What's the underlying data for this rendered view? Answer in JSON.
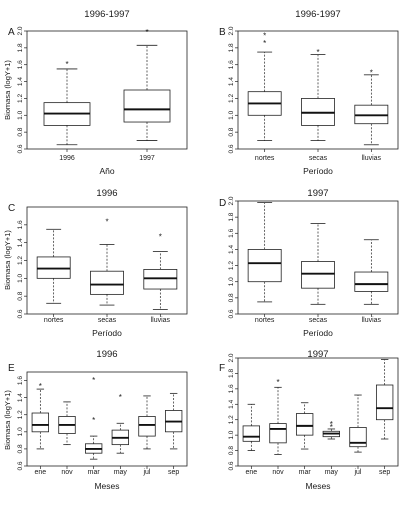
{
  "chart_data": [
    {
      "type": "box",
      "panel_label": "A",
      "title": "1996-1997",
      "ylabel": "Biomasa (logY+1)",
      "xlabel": "Año",
      "ylim": [
        0.6,
        2.0
      ],
      "yticks": [
        "0.6",
        "0.8",
        "1.0",
        "1.2",
        "1.4",
        "1.6",
        "1.8",
        "2.0"
      ],
      "categories": [
        "1996",
        "1997"
      ],
      "boxes": [
        {
          "label": "1996",
          "whisker_low": 0.65,
          "q1": 0.88,
          "median": 1.02,
          "q3": 1.15,
          "whisker_high": 1.55,
          "outliers": [
            1.62
          ]
        },
        {
          "label": "1997",
          "whisker_low": 0.7,
          "q1": 0.92,
          "median": 1.07,
          "q3": 1.3,
          "whisker_high": 1.83,
          "outliers": [
            2.0
          ]
        }
      ]
    },
    {
      "type": "box",
      "panel_label": "B",
      "title": "1996-1997",
      "ylabel": "",
      "xlabel": "Período",
      "ylim": [
        0.6,
        2.0
      ],
      "yticks": [
        "0.6",
        "0.8",
        "1.0",
        "1.2",
        "1.4",
        "1.6",
        "1.8",
        "2.0"
      ],
      "categories": [
        "nortes",
        "secas",
        "lluvias"
      ],
      "boxes": [
        {
          "label": "nortes",
          "whisker_low": 0.7,
          "q1": 1.0,
          "median": 1.14,
          "q3": 1.28,
          "whisker_high": 1.75,
          "outliers": [
            1.87,
            1.96
          ]
        },
        {
          "label": "secas",
          "whisker_low": 0.7,
          "q1": 0.88,
          "median": 1.03,
          "q3": 1.2,
          "whisker_high": 1.72,
          "outliers": [
            1.76
          ]
        },
        {
          "label": "lluvias",
          "whisker_low": 0.65,
          "q1": 0.9,
          "median": 1.0,
          "q3": 1.12,
          "whisker_high": 1.48,
          "outliers": [
            1.52
          ]
        }
      ]
    },
    {
      "type": "box",
      "panel_label": "C",
      "title": "1996",
      "ylabel": "Biomasa (logY+1)",
      "xlabel": "Período",
      "ylim": [
        0.6,
        1.8
      ],
      "yticks": [
        "0.6",
        "0.8",
        "1.0",
        "1.2",
        "1.4",
        "1.6"
      ],
      "categories": [
        "nortes",
        "secas",
        "lluvias"
      ],
      "boxes": [
        {
          "label": "nortes",
          "whisker_low": 0.72,
          "q1": 1.0,
          "median": 1.11,
          "q3": 1.24,
          "whisker_high": 1.55,
          "outliers": []
        },
        {
          "label": "secas",
          "whisker_low": 0.7,
          "q1": 0.82,
          "median": 0.93,
          "q3": 1.08,
          "whisker_high": 1.38,
          "outliers": [
            1.65
          ]
        },
        {
          "label": "lluvias",
          "whisker_low": 0.65,
          "q1": 0.88,
          "median": 1.0,
          "q3": 1.1,
          "whisker_high": 1.3,
          "outliers": [
            1.48
          ]
        }
      ]
    },
    {
      "type": "box",
      "panel_label": "D",
      "title": "1997",
      "ylabel": "",
      "xlabel": "Período",
      "ylim": [
        0.6,
        2.0
      ],
      "yticks": [
        "0.6",
        "0.8",
        "1.0",
        "1.2",
        "1.4",
        "1.6",
        "1.8",
        "2.0"
      ],
      "categories": [
        "nortes",
        "secas",
        "lluvias"
      ],
      "boxes": [
        {
          "label": "nortes",
          "whisker_low": 0.75,
          "q1": 1.0,
          "median": 1.23,
          "q3": 1.4,
          "whisker_high": 1.98,
          "outliers": []
        },
        {
          "label": "secas",
          "whisker_low": 0.72,
          "q1": 0.92,
          "median": 1.1,
          "q3": 1.25,
          "whisker_high": 1.72,
          "outliers": []
        },
        {
          "label": "lluvias",
          "whisker_low": 0.72,
          "q1": 0.88,
          "median": 0.97,
          "q3": 1.12,
          "whisker_high": 1.52,
          "outliers": []
        }
      ]
    },
    {
      "type": "box",
      "panel_label": "E",
      "title": "1996",
      "ylabel": "Biomasa (logY+1)",
      "xlabel": "Meses",
      "ylim": [
        0.6,
        1.7
      ],
      "yticks": [
        "0.6",
        "0.8",
        "1.0",
        "1.2",
        "1.4",
        "1.6"
      ],
      "categories": [
        "ene",
        "nov",
        "mar",
        "may",
        "jul",
        "sep"
      ],
      "boxes": [
        {
          "label": "ene",
          "whisker_low": 0.8,
          "q1": 1.0,
          "median": 1.08,
          "q3": 1.22,
          "whisker_high": 1.5,
          "outliers": [
            1.55
          ]
        },
        {
          "label": "nov",
          "whisker_low": 0.85,
          "q1": 0.98,
          "median": 1.08,
          "q3": 1.18,
          "whisker_high": 1.35,
          "outliers": []
        },
        {
          "label": "mar",
          "whisker_low": 0.68,
          "q1": 0.75,
          "median": 0.8,
          "q3": 0.86,
          "whisker_high": 0.95,
          "outliers": [
            1.15,
            1.62
          ]
        },
        {
          "label": "may",
          "whisker_low": 0.75,
          "q1": 0.85,
          "median": 0.93,
          "q3": 1.02,
          "whisker_high": 1.1,
          "outliers": [
            1.42
          ]
        },
        {
          "label": "jul",
          "whisker_low": 0.8,
          "q1": 0.95,
          "median": 1.08,
          "q3": 1.18,
          "whisker_high": 1.42,
          "outliers": []
        },
        {
          "label": "sep",
          "whisker_low": 0.8,
          "q1": 1.0,
          "median": 1.12,
          "q3": 1.25,
          "whisker_high": 1.45,
          "outliers": []
        }
      ]
    },
    {
      "type": "box",
      "panel_label": "F",
      "title": "1997",
      "ylabel": "",
      "xlabel": "Meses",
      "ylim": [
        0.6,
        2.0
      ],
      "yticks": [
        "0.6",
        "0.8",
        "1.0",
        "1.2",
        "1.4",
        "1.6",
        "1.8",
        "2.0"
      ],
      "categories": [
        "ene",
        "nov",
        "mar",
        "may",
        "jul",
        "sep"
      ],
      "boxes": [
        {
          "label": "ene",
          "whisker_low": 0.8,
          "q1": 0.92,
          "median": 0.98,
          "q3": 1.12,
          "whisker_high": 1.4,
          "outliers": []
        },
        {
          "label": "nov",
          "whisker_low": 0.75,
          "q1": 0.9,
          "median": 1.08,
          "q3": 1.15,
          "whisker_high": 1.62,
          "outliers": [
            1.7
          ]
        },
        {
          "label": "mar",
          "whisker_low": 0.82,
          "q1": 1.0,
          "median": 1.12,
          "q3": 1.28,
          "whisker_high": 1.42,
          "outliers": []
        },
        {
          "label": "may",
          "whisker_low": 0.95,
          "q1": 0.98,
          "median": 1.02,
          "q3": 1.05,
          "whisker_high": 1.08,
          "outliers": [
            1.12,
            1.16
          ]
        },
        {
          "label": "jul",
          "whisker_low": 0.78,
          "q1": 0.85,
          "median": 0.9,
          "q3": 1.1,
          "whisker_high": 1.52,
          "outliers": []
        },
        {
          "label": "sep",
          "whisker_low": 0.95,
          "q1": 1.2,
          "median": 1.35,
          "q3": 1.65,
          "whisker_high": 1.98,
          "outliers": []
        }
      ]
    }
  ]
}
